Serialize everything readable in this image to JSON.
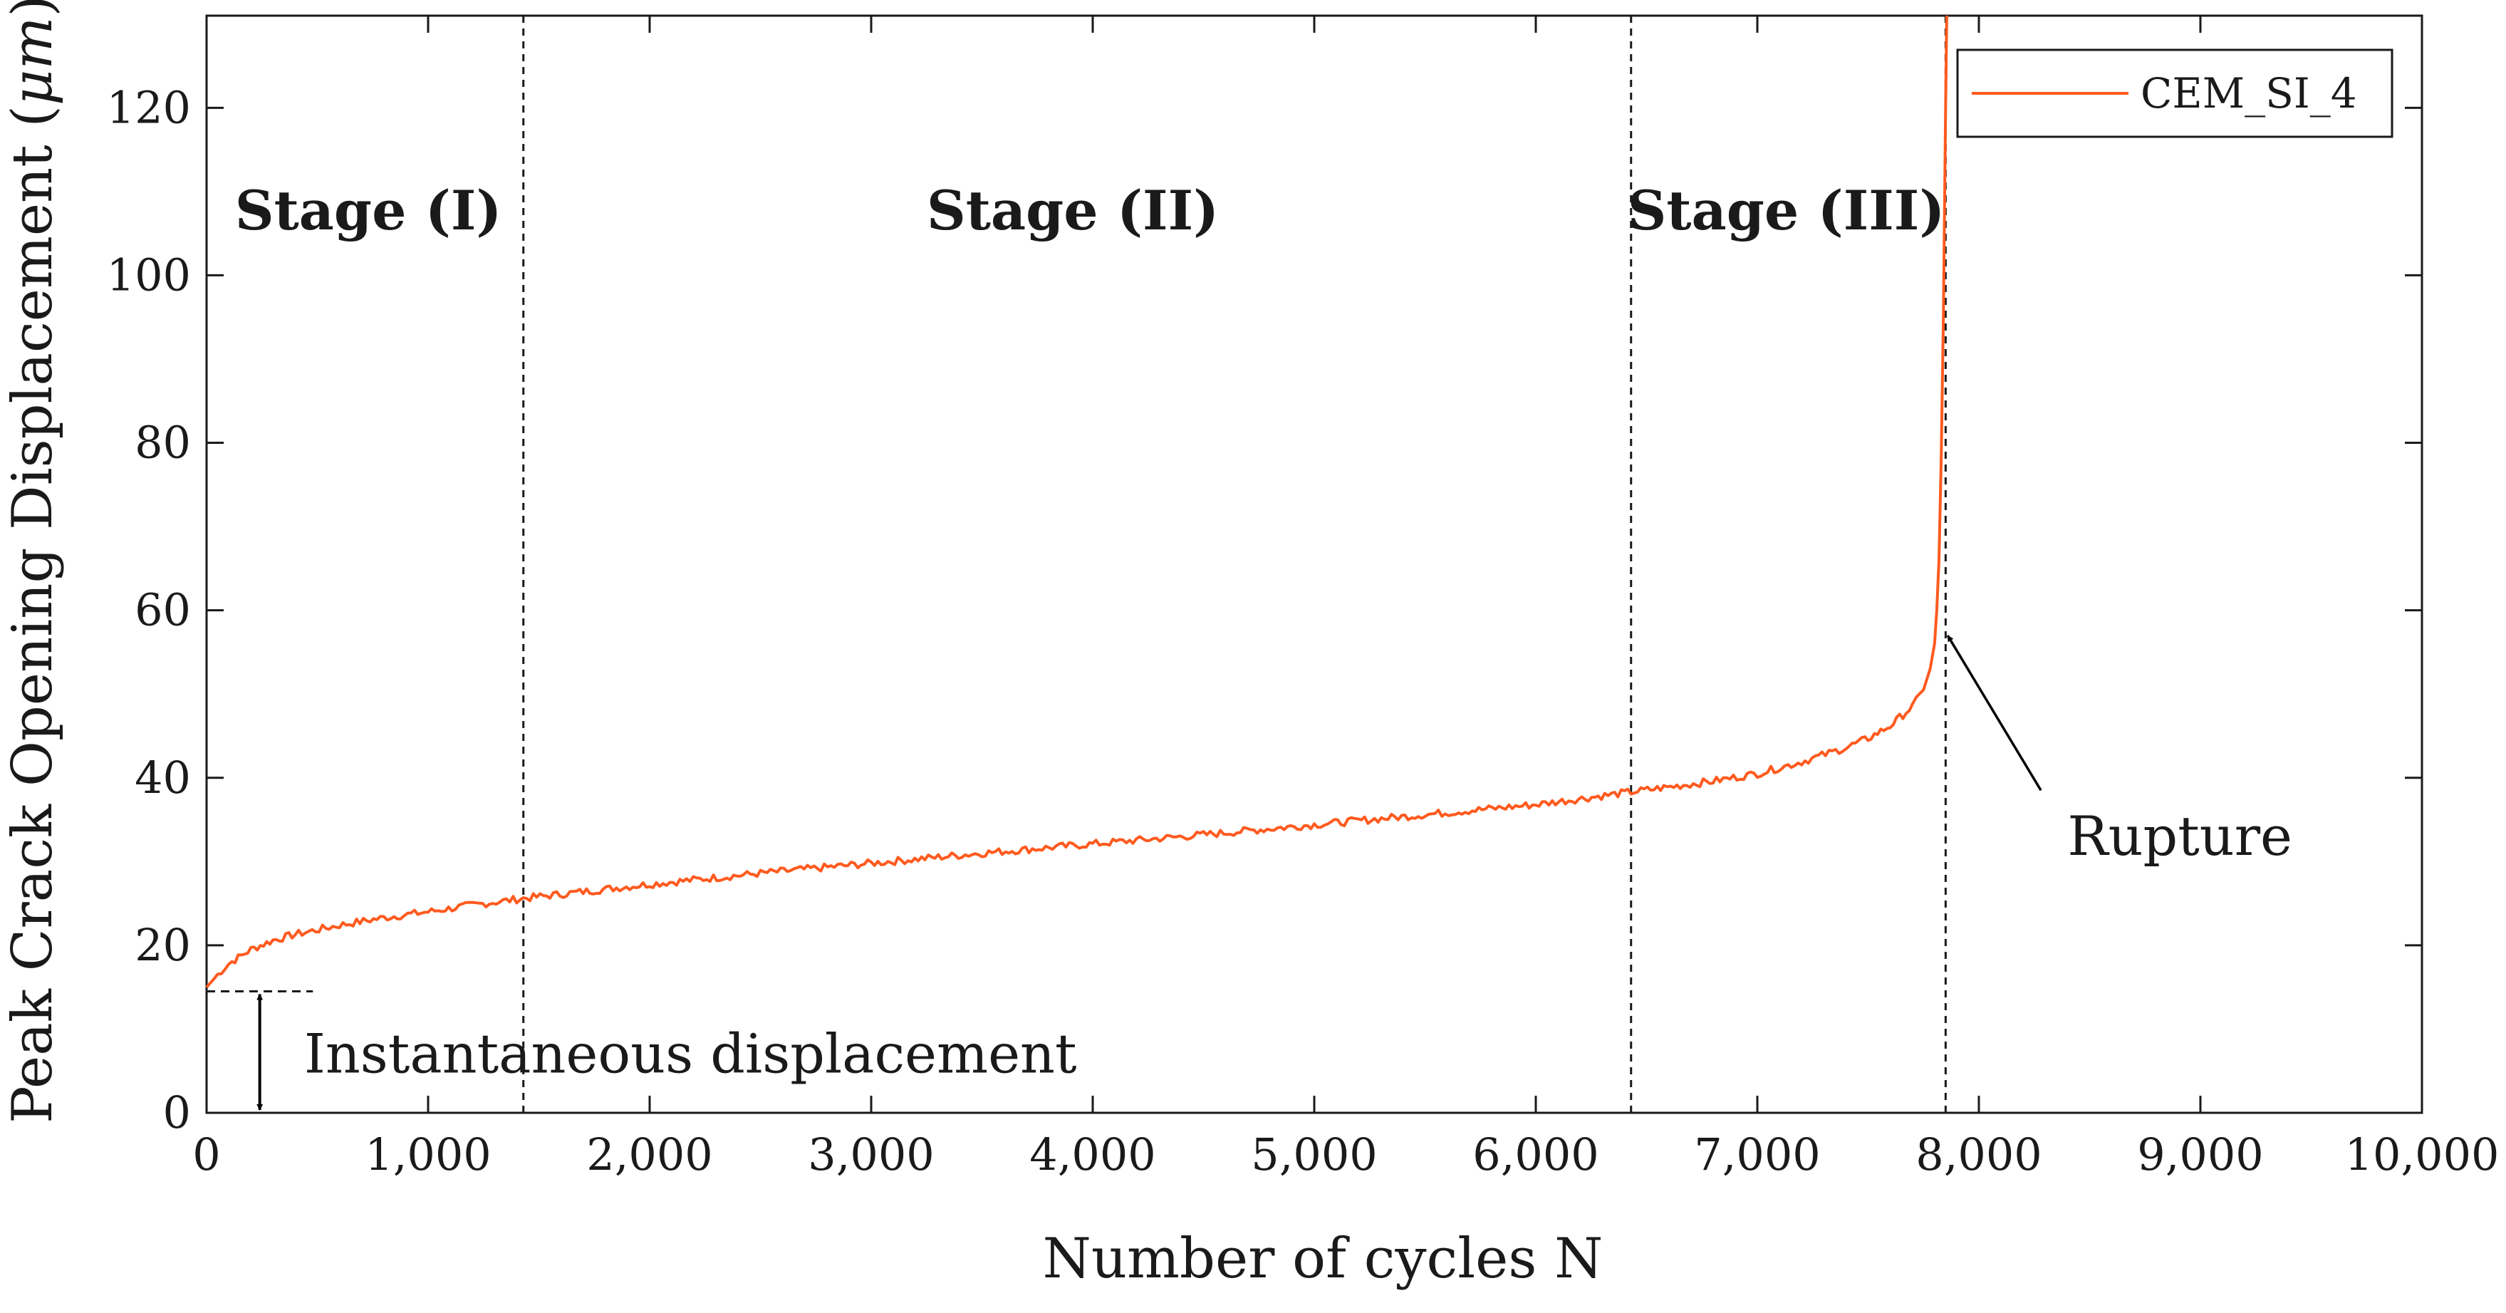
{
  "chart_data": {
    "type": "line",
    "title": "",
    "xlabel": "Number of cycles N",
    "ylabel_prefix": "Peak Crack Opening Displacement (",
    "ylabel_unit": "μm",
    "ylabel_suffix": ")",
    "xlim": [
      0,
      10000
    ],
    "ylim": [
      0,
      131
    ],
    "xticks": [
      0,
      1000,
      2000,
      3000,
      4000,
      5000,
      6000,
      7000,
      8000,
      9000,
      10000
    ],
    "xtick_labels": [
      "0",
      "1,000",
      "2,000",
      "3,000",
      "4,000",
      "5,000",
      "6,000",
      "7,000",
      "8,000",
      "9,000",
      "10,000"
    ],
    "yticks": [
      0,
      20,
      40,
      60,
      80,
      100,
      120
    ],
    "ytick_labels": [
      "0",
      "20",
      "40",
      "60",
      "80",
      "100",
      "120"
    ],
    "grid": false,
    "legend_position": "top-right",
    "series": [
      {
        "name": "CEM_SI_4",
        "color": "#ff5a1f",
        "x": [
          0,
          50,
          100,
          200,
          300,
          400,
          600,
          800,
          1000,
          1200,
          1430,
          2000,
          2500,
          3000,
          3500,
          4000,
          4500,
          5000,
          5500,
          6000,
          6430,
          6800,
          7000,
          7200,
          7400,
          7500,
          7600,
          7700,
          7750,
          7780,
          7800,
          7810,
          7820,
          7830,
          7840,
          7845,
          7850,
          7855
        ],
        "y": [
          15.0,
          16.5,
          17.8,
          19.5,
          20.6,
          21.3,
          22.4,
          23.3,
          24.0,
          24.8,
          25.6,
          27.3,
          28.6,
          29.8,
          31.0,
          32.1,
          33.2,
          34.4,
          35.6,
          36.8,
          38.3,
          39.6,
          40.5,
          41.9,
          43.6,
          44.7,
          46.2,
          48.5,
          50.5,
          53.0,
          56.0,
          60.0,
          66.0,
          78.0,
          95.0,
          108.0,
          120.0,
          131.0
        ]
      }
    ],
    "stage_boundaries_x": [
      1430,
      6430,
      7850
    ],
    "stage_labels": [
      {
        "text": "Stage (I)",
        "x": 730,
        "y": 105.5
      },
      {
        "text": "Stage (II)",
        "x": 3910,
        "y": 105.5
      },
      {
        "text": "Stage (III)",
        "x": 7130,
        "y": 105.5
      }
    ],
    "annotations": {
      "instantaneous": {
        "text": "Instantaneous displacement",
        "x_arrow": 240,
        "y_top": 14.5,
        "y_bottom": 0,
        "x_line_start": 0,
        "x_line_end": 480,
        "x_text": 440,
        "y_text": 7
      },
      "rupture": {
        "text": "Rupture",
        "x_text": 8400,
        "y_text": 33,
        "x_start": 8280,
        "y_start": 38.5,
        "x_end": 7840,
        "y_end": 57.5
      }
    }
  }
}
